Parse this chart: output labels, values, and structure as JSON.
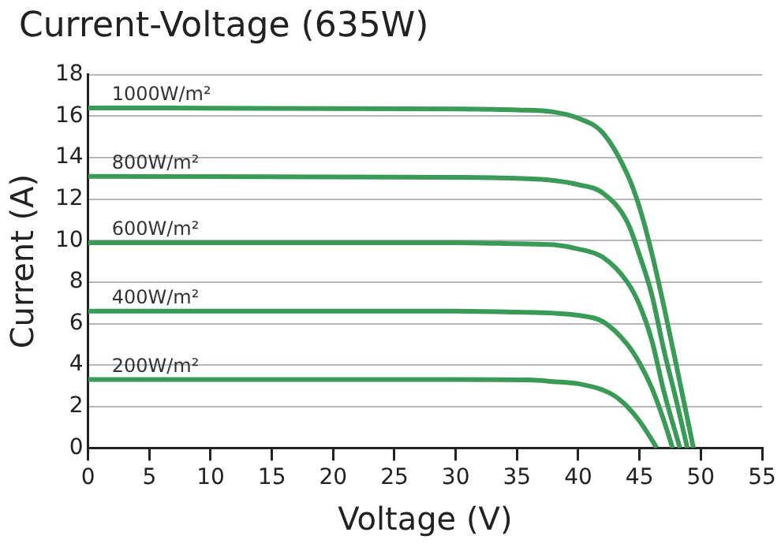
{
  "chart_data": {
    "type": "line",
    "title": "Current-Voltage (635W)",
    "xlabel": "Voltage (V)",
    "ylabel": "Current (A)",
    "xlim": [
      0,
      55
    ],
    "xticks": [
      0,
      5,
      10,
      15,
      20,
      25,
      30,
      35,
      40,
      45,
      50,
      55
    ],
    "ylim": [
      0,
      18
    ],
    "yticks": [
      0,
      2,
      4,
      6,
      8,
      10,
      12,
      14,
      16,
      18
    ],
    "grid": "y",
    "legend": false,
    "marker": "none",
    "line_style": "solid",
    "series": [
      {
        "name": "1000W/m²",
        "color": "#3a9a57",
        "x": [
          0,
          30,
          35,
          38,
          40,
          42,
          44,
          45,
          46,
          47,
          48,
          49.4
        ],
        "values": [
          16.4,
          16.35,
          16.3,
          16.2,
          15.9,
          15.2,
          13.2,
          11.6,
          9.4,
          6.8,
          4.0,
          0
        ]
      },
      {
        "name": "800W/m²",
        "color": "#3a9a57",
        "x": [
          0,
          30,
          35,
          38,
          40,
          42,
          44,
          45,
          46,
          47,
          48,
          48.9
        ],
        "values": [
          13.1,
          13.05,
          13.0,
          12.9,
          12.7,
          12.3,
          10.9,
          9.3,
          7.4,
          4.7,
          2.3,
          0
        ]
      },
      {
        "name": "600W/m²",
        "color": "#3a9a57",
        "x": [
          0,
          30,
          35,
          38,
          40,
          42,
          44,
          45,
          46,
          47,
          48.3
        ],
        "values": [
          9.9,
          9.9,
          9.85,
          9.8,
          9.6,
          9.2,
          8.0,
          6.9,
          5.2,
          2.7,
          0
        ]
      },
      {
        "name": "400W/m²",
        "color": "#3a9a57",
        "x": [
          0,
          30,
          35,
          38,
          40,
          42,
          44,
          45,
          46,
          47,
          47.7
        ],
        "values": [
          6.6,
          6.6,
          6.55,
          6.5,
          6.4,
          6.1,
          5.0,
          4.1,
          2.9,
          1.3,
          0
        ]
      },
      {
        "name": "200W/m²",
        "color": "#3a9a57",
        "x": [
          0,
          30,
          36,
          38,
          40,
          42,
          43,
          44,
          45,
          46,
          46.4
        ],
        "values": [
          3.3,
          3.3,
          3.28,
          3.2,
          3.1,
          2.8,
          2.5,
          2.0,
          1.3,
          0.4,
          0
        ]
      }
    ]
  }
}
